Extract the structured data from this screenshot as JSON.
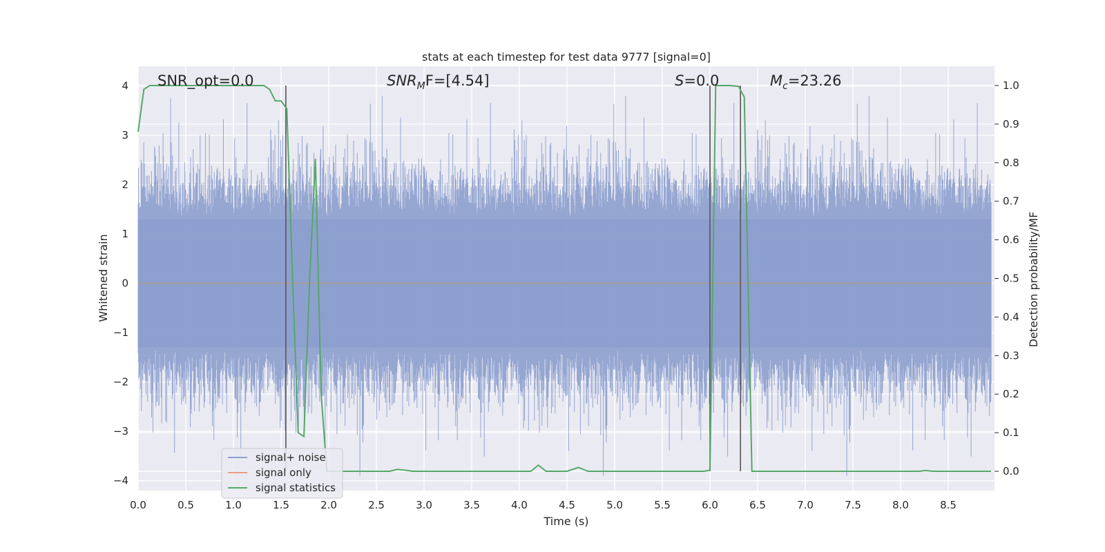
{
  "chart_data": {
    "type": "line",
    "title": "stats at each timestep for test data 9777 [signal=0]",
    "xlabel": "Time (s)",
    "ylabel": "Whitened strain",
    "y2label": "Detection probability/MF",
    "xlim": [
      0,
      9.0
    ],
    "ylim": [
      -4.2,
      4.4
    ],
    "y2lim": [
      -0.05,
      1.05
    ],
    "x_ticks": [
      0.0,
      0.5,
      1.0,
      1.5,
      2.0,
      2.5,
      3.0,
      3.5,
      4.0,
      4.5,
      5.0,
      5.5,
      6.0,
      6.5,
      7.0,
      7.5,
      8.0,
      8.5
    ],
    "x_tick_labels": [
      "0.0",
      "0.5",
      "1.0",
      "1.5",
      "2.0",
      "2.5",
      "3.0",
      "3.5",
      "4.0",
      "4.5",
      "5.0",
      "5.5",
      "6.0",
      "6.5",
      "7.0",
      "7.5",
      "8.0",
      "8.5"
    ],
    "y_ticks": [
      -4,
      -3,
      -2,
      -1,
      0,
      1,
      2,
      3,
      4
    ],
    "y_tick_labels": [
      "−4",
      "−3",
      "−2",
      "−1",
      "0",
      "1",
      "2",
      "3",
      "4"
    ],
    "y2_ticks": [
      0.0,
      0.1,
      0.2,
      0.3,
      0.4,
      0.5,
      0.6,
      0.7,
      0.8,
      0.9,
      1.0
    ],
    "y2_tick_labels": [
      "0.0",
      "0.1",
      "0.2",
      "0.3",
      "0.4",
      "0.5",
      "0.6",
      "0.7",
      "0.8",
      "0.9",
      "1.0"
    ],
    "grid": true,
    "legend_position": "lower-left",
    "annotations": {
      "snr_opt": "SNR_opt=0.0",
      "snr_mf_name": "SNR",
      "snr_mf_sub": "M",
      "snr_mf_rest": "F=[4.54]",
      "s_name": "S",
      "s_rest": "=0.0",
      "mc_name": "M",
      "mc_sub": "c",
      "mc_rest": "=23.26"
    },
    "vertical_lines_x": [
      1.55,
      6.0,
      6.32
    ],
    "series": [
      {
        "name": "signal+ noise",
        "axis": "left",
        "color": "#8c9fcd",
        "description_range": [
          -3.9,
          4.0
        ]
      },
      {
        "name": "signal only",
        "axis": "left",
        "color": "#e8a07e",
        "values_constant": 0
      },
      {
        "name": "signal statistics",
        "axis": "right",
        "color": "#55a868",
        "x": [
          0.0,
          0.06,
          0.12,
          0.3,
          0.6,
          0.9,
          1.2,
          1.32,
          1.38,
          1.44,
          1.5,
          1.56,
          1.62,
          1.68,
          1.74,
          1.8,
          1.86,
          1.92,
          1.98,
          2.04,
          2.4,
          2.64,
          2.72,
          2.8,
          2.88,
          3.2,
          3.6,
          4.0,
          4.12,
          4.2,
          4.28,
          4.5,
          4.62,
          4.72,
          5.2,
          5.6,
          5.94,
          6.0,
          6.06,
          6.2,
          6.3,
          6.36,
          6.44,
          6.8,
          7.4,
          7.8,
          8.2,
          8.26,
          8.34,
          8.7,
          8.95
        ],
        "values": [
          0.88,
          0.99,
          1.0,
          1.0,
          1.0,
          1.0,
          1.0,
          1.0,
          0.99,
          0.96,
          0.96,
          0.94,
          0.5,
          0.1,
          0.09,
          0.5,
          0.81,
          0.2,
          0.0,
          0.0,
          0.0,
          0.0,
          0.005,
          0.003,
          0.0,
          0.0,
          0.0,
          0.0,
          0.0,
          0.016,
          0.0,
          0.0,
          0.01,
          0.0,
          0.0,
          0.0,
          0.0,
          0.003,
          1.0,
          1.0,
          0.998,
          0.97,
          0.0,
          0.0,
          0.0,
          0.0,
          0.0,
          0.002,
          0.0,
          0.0,
          0.0
        ]
      }
    ]
  }
}
